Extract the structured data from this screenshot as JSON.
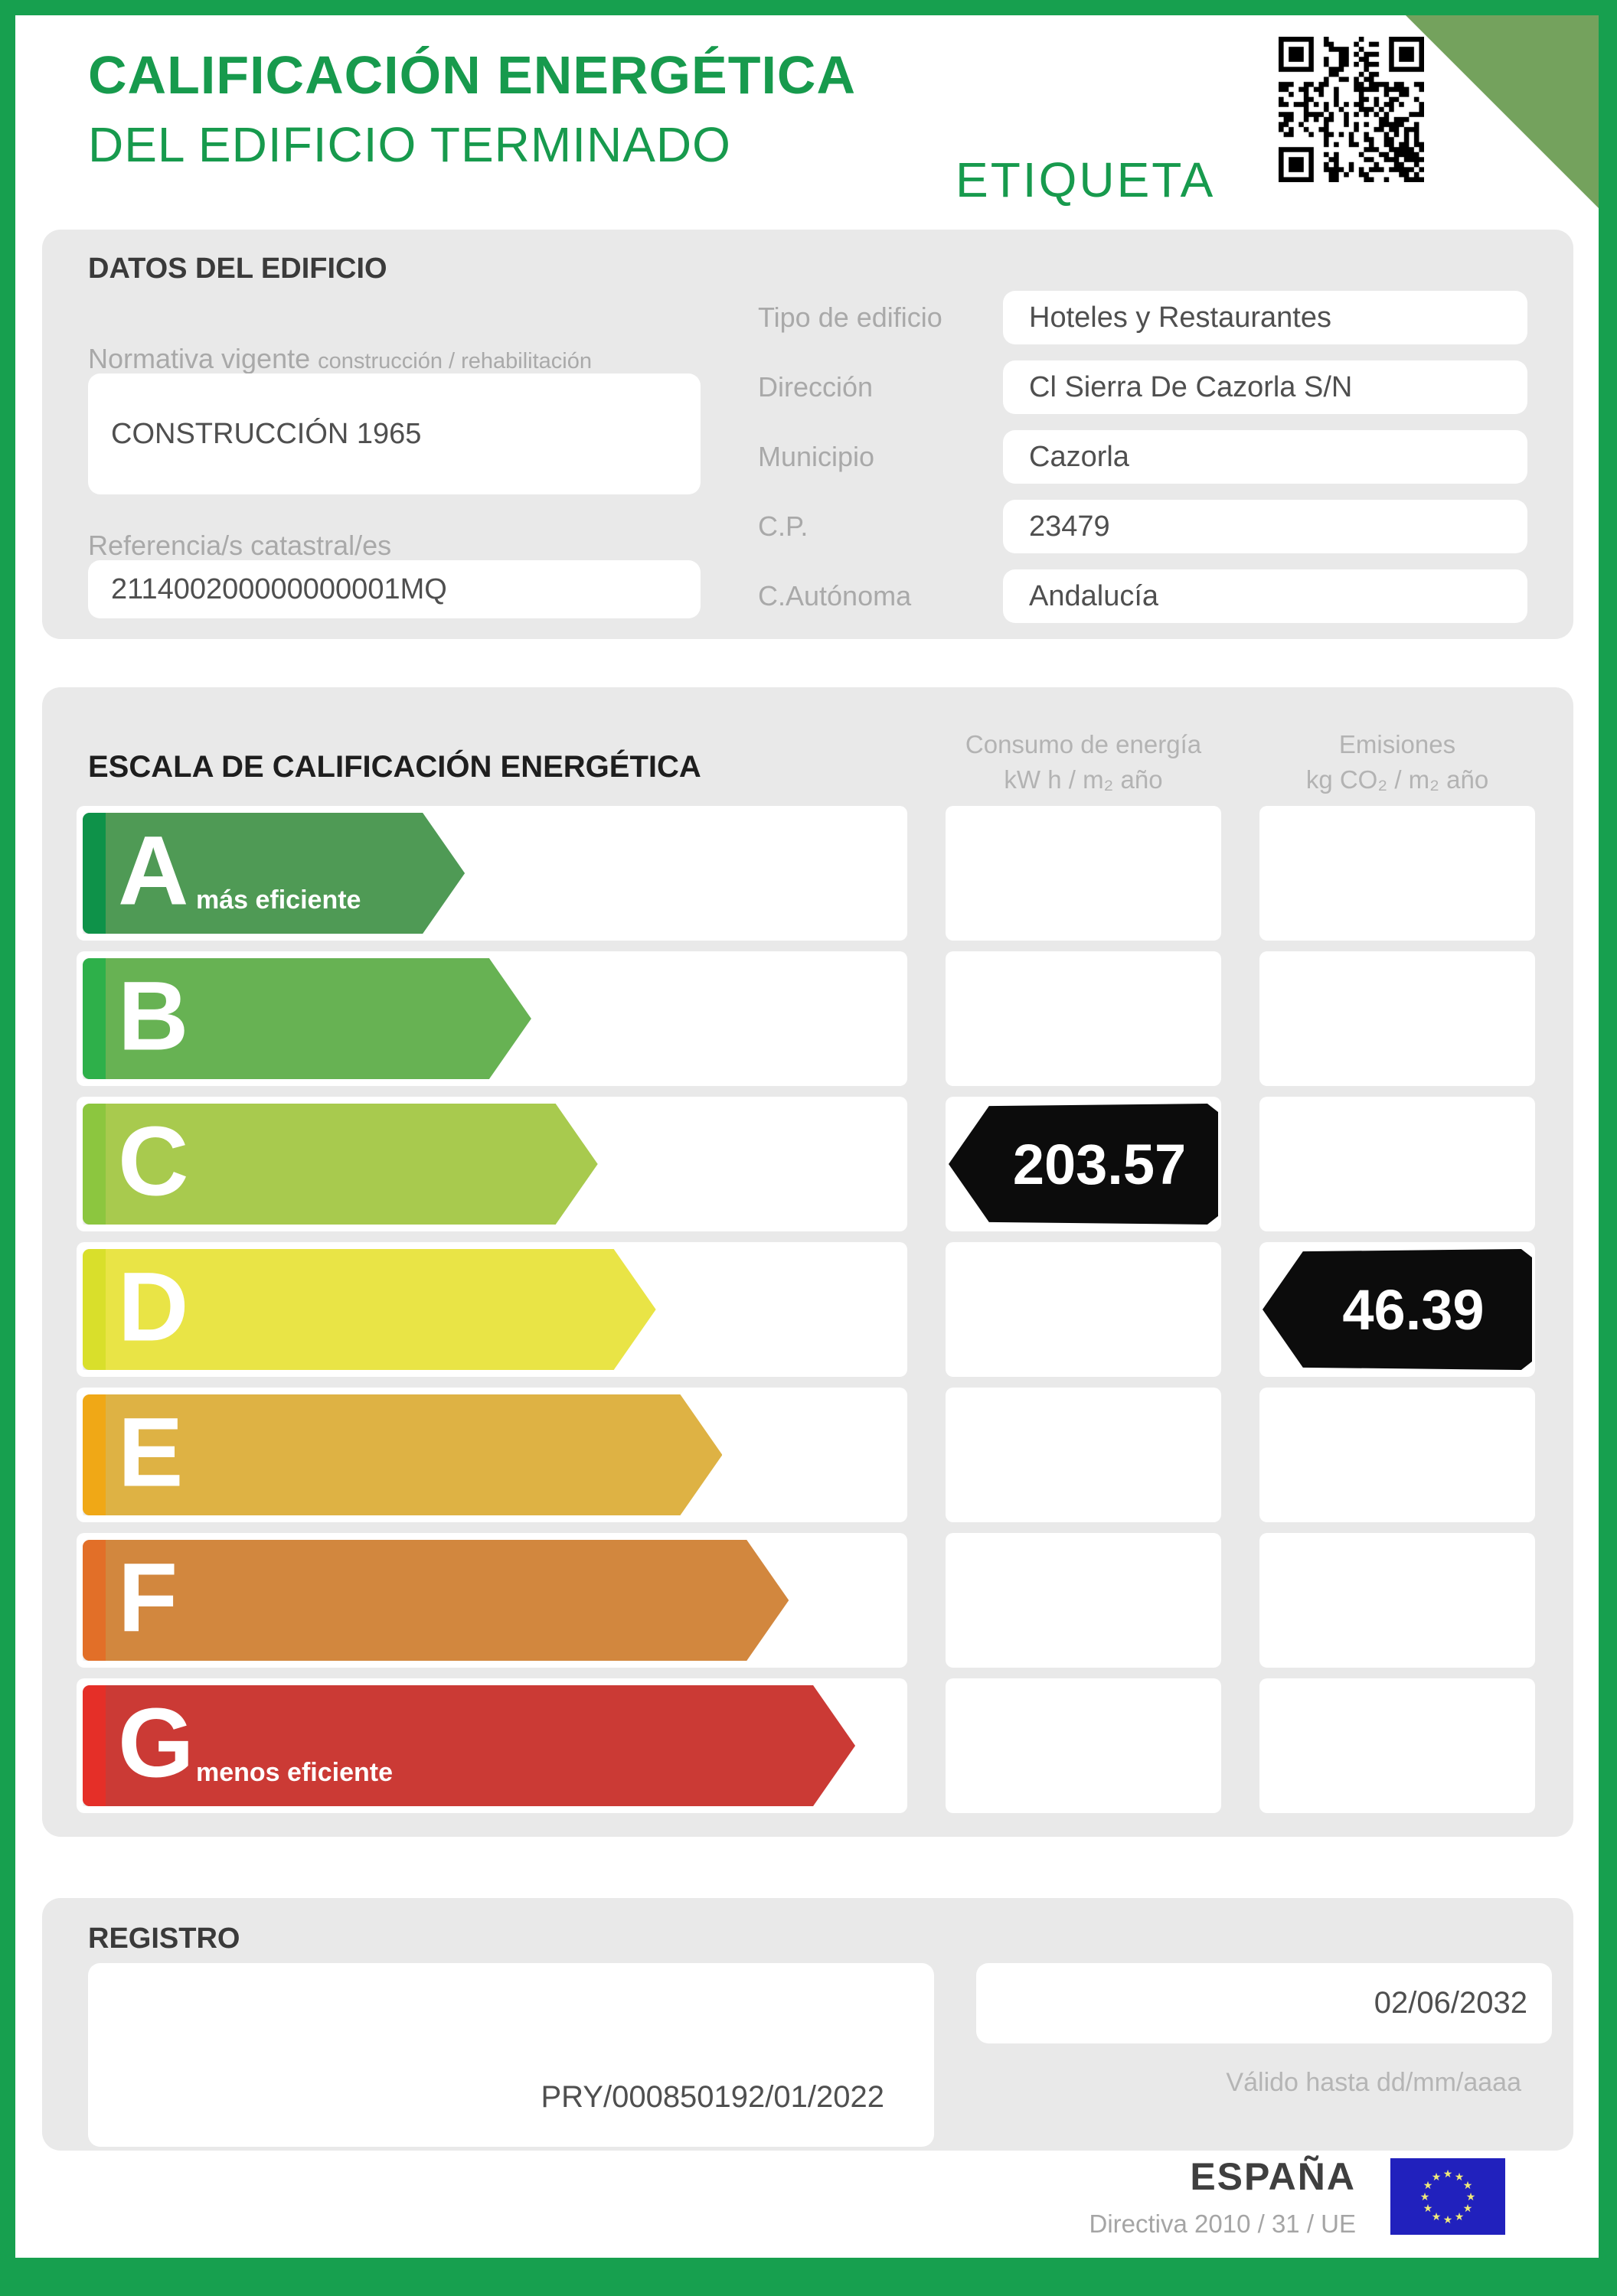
{
  "colors": {
    "frame_green": "#17a04f",
    "title_green": "#179a4d",
    "corner_green": "#74a25d",
    "badge_black": "#0c0c0c"
  },
  "header": {
    "title_line1": "CALIFICACIÓN ENERGÉTICA",
    "title_line2": "DEL EDIFICIO TERMINADO",
    "etiqueta_label": "ETIQUETA"
  },
  "building": {
    "section_title": "DATOS DEL EDIFICIO",
    "normativa_label": "Normativa vigente",
    "normativa_sublabel": "construcción / rehabilitación",
    "normativa_value": "CONSTRUCCIÓN  1965",
    "catastral_label": "Referencia/s catastral/es",
    "catastral_value": "211400200000000001MQ",
    "fields": [
      {
        "label": "Tipo de edificio",
        "value": "Hoteles y Restaurantes"
      },
      {
        "label": "Dirección",
        "value": "Cl Sierra De Cazorla S/N"
      },
      {
        "label": "Municipio",
        "value": "Cazorla"
      },
      {
        "label": "C.P.",
        "value": "23479"
      },
      {
        "label": "C.Autónoma",
        "value": "Andalucía"
      }
    ]
  },
  "scale": {
    "section_title": "ESCALA DE CALIFICACIÓN ENERGÉTICA",
    "consumption_header_line1": "Consumo de energía",
    "consumption_header_line2": "kW h / m₂ año",
    "emissions_header_line1": "Emisiones",
    "emissions_header_line2": "kg CO₂ / m₂ año",
    "rows": [
      {
        "letter": "A",
        "note": "más eficiente",
        "color": "#4f9a55",
        "stripe": "#0e9249"
      },
      {
        "letter": "B",
        "note": "",
        "color": "#67b253",
        "stripe": "#2eb04a"
      },
      {
        "letter": "C",
        "note": "",
        "color": "#a8ca4e",
        "stripe": "#8cc63f"
      },
      {
        "letter": "D",
        "note": "",
        "color": "#e9e446",
        "stripe": "#d9df2b"
      },
      {
        "letter": "E",
        "note": "",
        "color": "#deb244",
        "stripe": "#f0a816"
      },
      {
        "letter": "F",
        "note": "",
        "color": "#d2873e",
        "stripe": "#e26f28"
      },
      {
        "letter": "G",
        "note": "menos eficiente",
        "color": "#cb3a35",
        "stripe": "#e52f28"
      }
    ],
    "consumption_value": "203.57",
    "consumption_rating": "C",
    "emissions_value": "46.39",
    "emissions_rating": "D"
  },
  "registro": {
    "section_title": "REGISTRO",
    "registry_number": "PRY/000850192/01/2022",
    "valid_until_date": "02/06/2032",
    "valid_until_label": "Válido hasta dd/mm/aaaa"
  },
  "footer": {
    "country": "ESPAÑA",
    "directive": "Directiva 2010 / 31 / UE"
  }
}
